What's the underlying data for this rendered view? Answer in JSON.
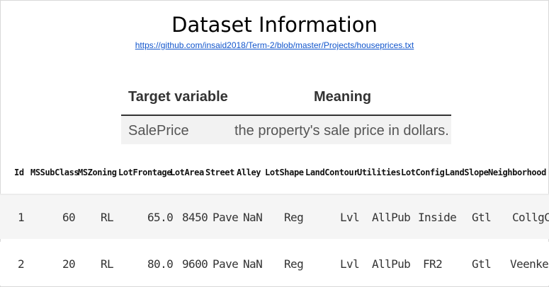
{
  "title": "Dataset Information",
  "link": "https://github.com/insaid2018/Term-2/blob/master/Projects/houseprices.txt",
  "target_table": {
    "headers": [
      "Target variable",
      "Meaning"
    ],
    "row": [
      "SalePrice",
      "the property's sale price in dollars."
    ]
  },
  "data_table": {
    "columns": [
      "Id",
      "MSSubClass",
      "MSZoning",
      "LotFrontage",
      "LotArea",
      "Street",
      "Alley",
      "LotShape",
      "LandContour",
      "Utilities",
      "LotConfig",
      "LandSlope",
      "Neighborhood"
    ],
    "rows": [
      [
        "1",
        "60",
        "RL",
        "65.0",
        "8450",
        "Pave",
        "NaN",
        "Reg",
        "Lvl",
        "AllPub",
        "Inside",
        "Gtl",
        "CollgCr"
      ],
      [
        "2",
        "20",
        "RL",
        "80.0",
        "9600",
        "Pave",
        "NaN",
        "Reg",
        "Lvl",
        "AllPub",
        "FR2",
        "Gtl",
        "Veenker"
      ]
    ]
  }
}
